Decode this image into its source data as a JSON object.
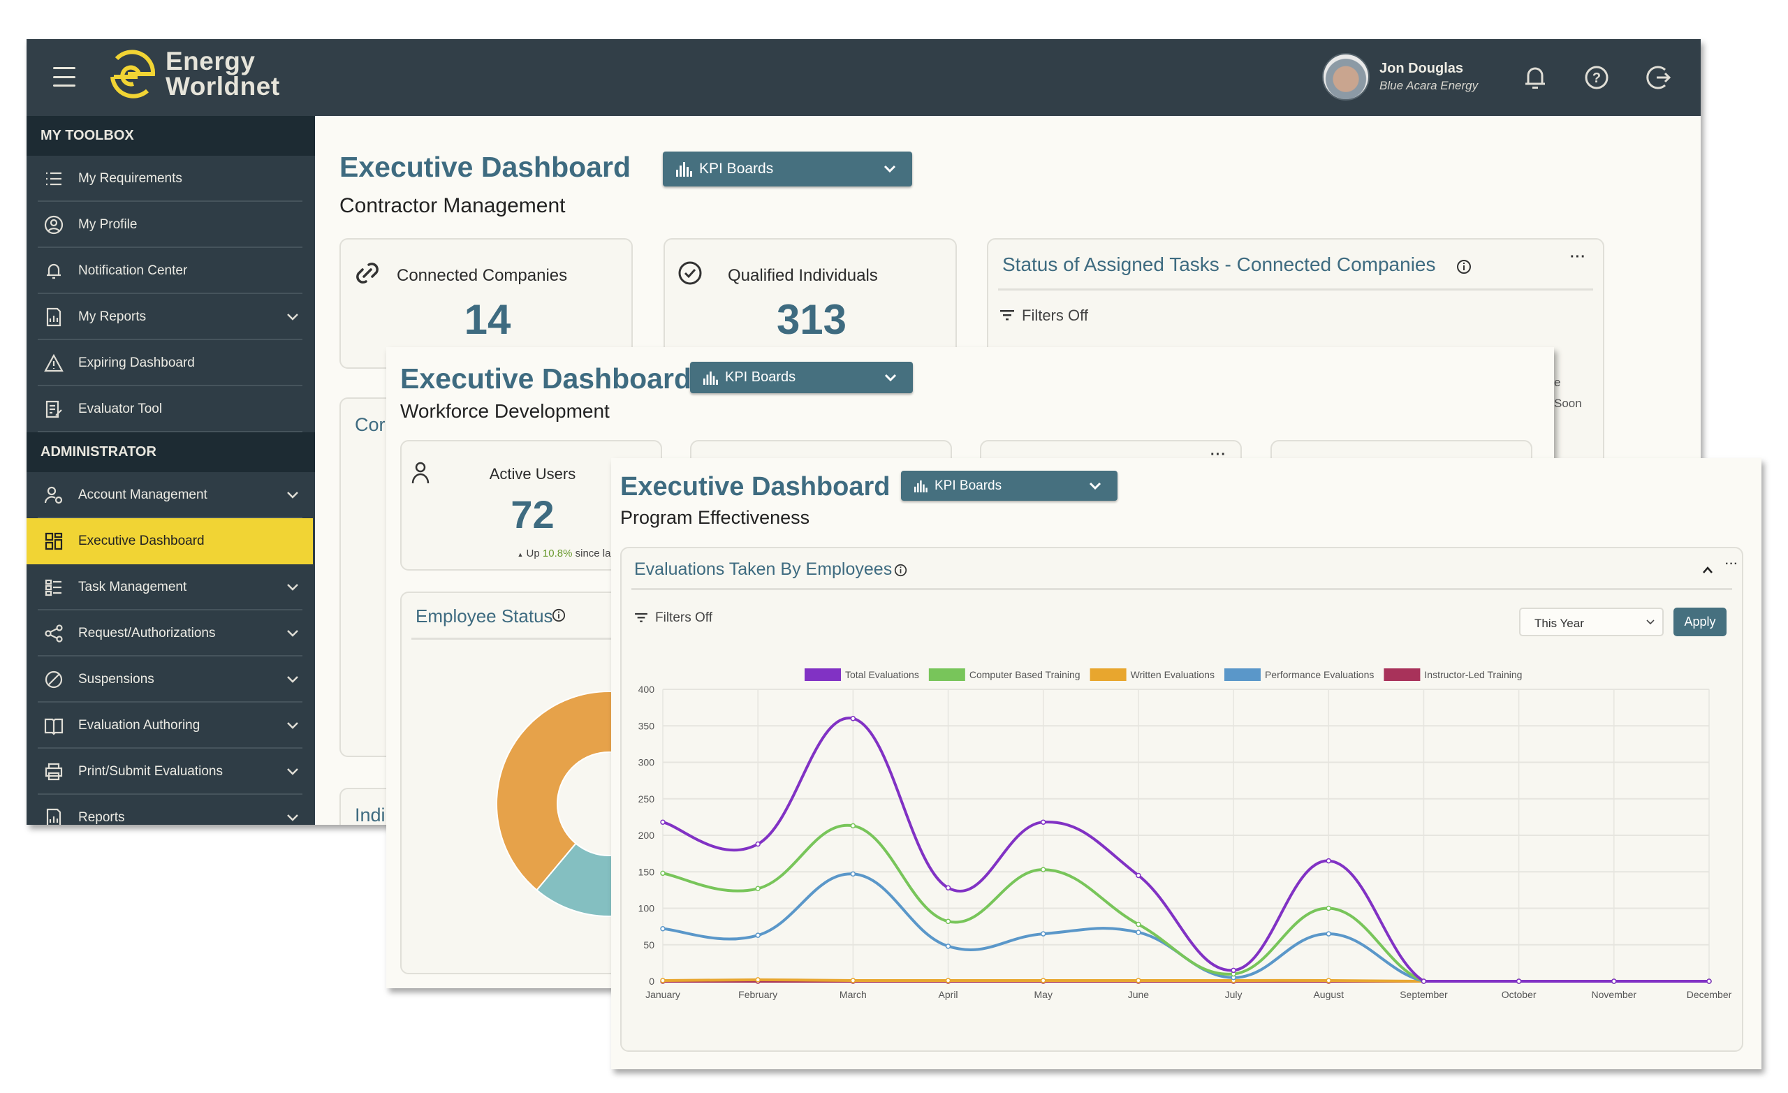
{
  "app": {
    "brand_line1": "Energy",
    "brand_line2": "Worldnet",
    "brand_color": "#f1d434"
  },
  "user": {
    "name": "Jon Douglas",
    "company": "Blue Acara Energy"
  },
  "header_icons": [
    "menu-icon",
    "bell-icon",
    "help-icon",
    "logout-icon"
  ],
  "sidebar": {
    "section1": "MY TOOLBOX",
    "items1": [
      {
        "label": "My Requirements",
        "icon": "list-icon"
      },
      {
        "label": "My Profile",
        "icon": "user-circle-icon"
      },
      {
        "label": "Notification Center",
        "icon": "bell-icon"
      },
      {
        "label": "My Reports",
        "icon": "report-icon",
        "expandable": true
      },
      {
        "label": "Expiring Dashboard",
        "icon": "warning-icon"
      },
      {
        "label": "Evaluator Tool",
        "icon": "edit-icon"
      }
    ],
    "section2": "ADMINISTRATOR",
    "items2": [
      {
        "label": "Account Management",
        "icon": "user-gear-icon",
        "expandable": true
      },
      {
        "label": "Executive Dashboard",
        "icon": "dashboard-icon",
        "active": true
      },
      {
        "label": "Task Management",
        "icon": "tasks-icon",
        "expandable": true
      },
      {
        "label": "Request/Authorizations",
        "icon": "share-icon",
        "expandable": true
      },
      {
        "label": "Suspensions",
        "icon": "ban-icon",
        "expandable": true
      },
      {
        "label": "Evaluation Authoring",
        "icon": "book-icon",
        "expandable": true
      },
      {
        "label": "Print/Submit Evaluations",
        "icon": "printer-icon",
        "expandable": true
      },
      {
        "label": "Reports",
        "icon": "report-icon",
        "expandable": true
      }
    ]
  },
  "window1": {
    "title": "Executive Dashboard",
    "subtitle": "Contractor Management",
    "kpi_label": "KPI Boards",
    "cards": [
      {
        "label": "Connected Companies",
        "value": "14",
        "icon": "link-icon"
      },
      {
        "label": "Qualified Individuals",
        "value": "313",
        "icon": "check-circle-icon"
      }
    ],
    "status_card": {
      "title": "Status of Assigned Tasks - Connected Companies",
      "filters": "Filters Off",
      "partial_legend_1": "e",
      "partial_legend_2": "Soon"
    },
    "partial_card_1": "Cor",
    "partial_card_2": "Indi"
  },
  "window2": {
    "title": "Executive Dashboard",
    "subtitle": "Workforce Development",
    "kpi_label": "KPI Boards",
    "active_users": {
      "label": "Active Users",
      "value": "72",
      "trend_prefix": "Up",
      "trend_value": "10.8%",
      "trend_suffix": "since last month",
      "trend_color": "#6a9a2e"
    },
    "employee_status": {
      "title": "Employee Status",
      "donut_colors": [
        "#e6a24a",
        "#84bfc1"
      ]
    }
  },
  "window3": {
    "title": "Executive Dashboard",
    "subtitle": "Program Effectiveness",
    "kpi_label": "KPI Boards",
    "card_title": "Evaluations Taken By Employees",
    "filters": "Filters Off",
    "period_select": "This Year",
    "apply_label": "Apply"
  },
  "chart_data": {
    "type": "line",
    "categories": [
      "January",
      "February",
      "March",
      "April",
      "May",
      "June",
      "July",
      "August",
      "September",
      "October",
      "November",
      "December"
    ],
    "ylim": [
      0,
      400
    ],
    "yticks": [
      0,
      50,
      100,
      150,
      200,
      250,
      300,
      350,
      400
    ],
    "grid": true,
    "legend": "top",
    "series": [
      {
        "name": "Total Evaluations",
        "color": "#8132c4",
        "values": [
          218,
          188,
          360,
          128,
          218,
          145,
          15,
          165,
          0,
          0,
          0,
          0
        ]
      },
      {
        "name": "Computer Based Training",
        "color": "#78c55a",
        "values": [
          148,
          127,
          213,
          82,
          153,
          78,
          10,
          100,
          0,
          0,
          0,
          0
        ]
      },
      {
        "name": "Written Evaluations",
        "color": "#e8a62e",
        "values": [
          1,
          2,
          1,
          1,
          1,
          1,
          1,
          1,
          0,
          0,
          0,
          0
        ]
      },
      {
        "name": "Performance Evaluations",
        "color": "#5a97c9",
        "values": [
          72,
          63,
          147,
          48,
          65,
          67,
          5,
          65,
          0,
          0,
          0,
          0
        ]
      },
      {
        "name": "Instructor-Led Training",
        "color": "#a8325a",
        "values": [
          0,
          0,
          0,
          0,
          0,
          0,
          0,
          0,
          0,
          0,
          0,
          0
        ]
      }
    ]
  }
}
